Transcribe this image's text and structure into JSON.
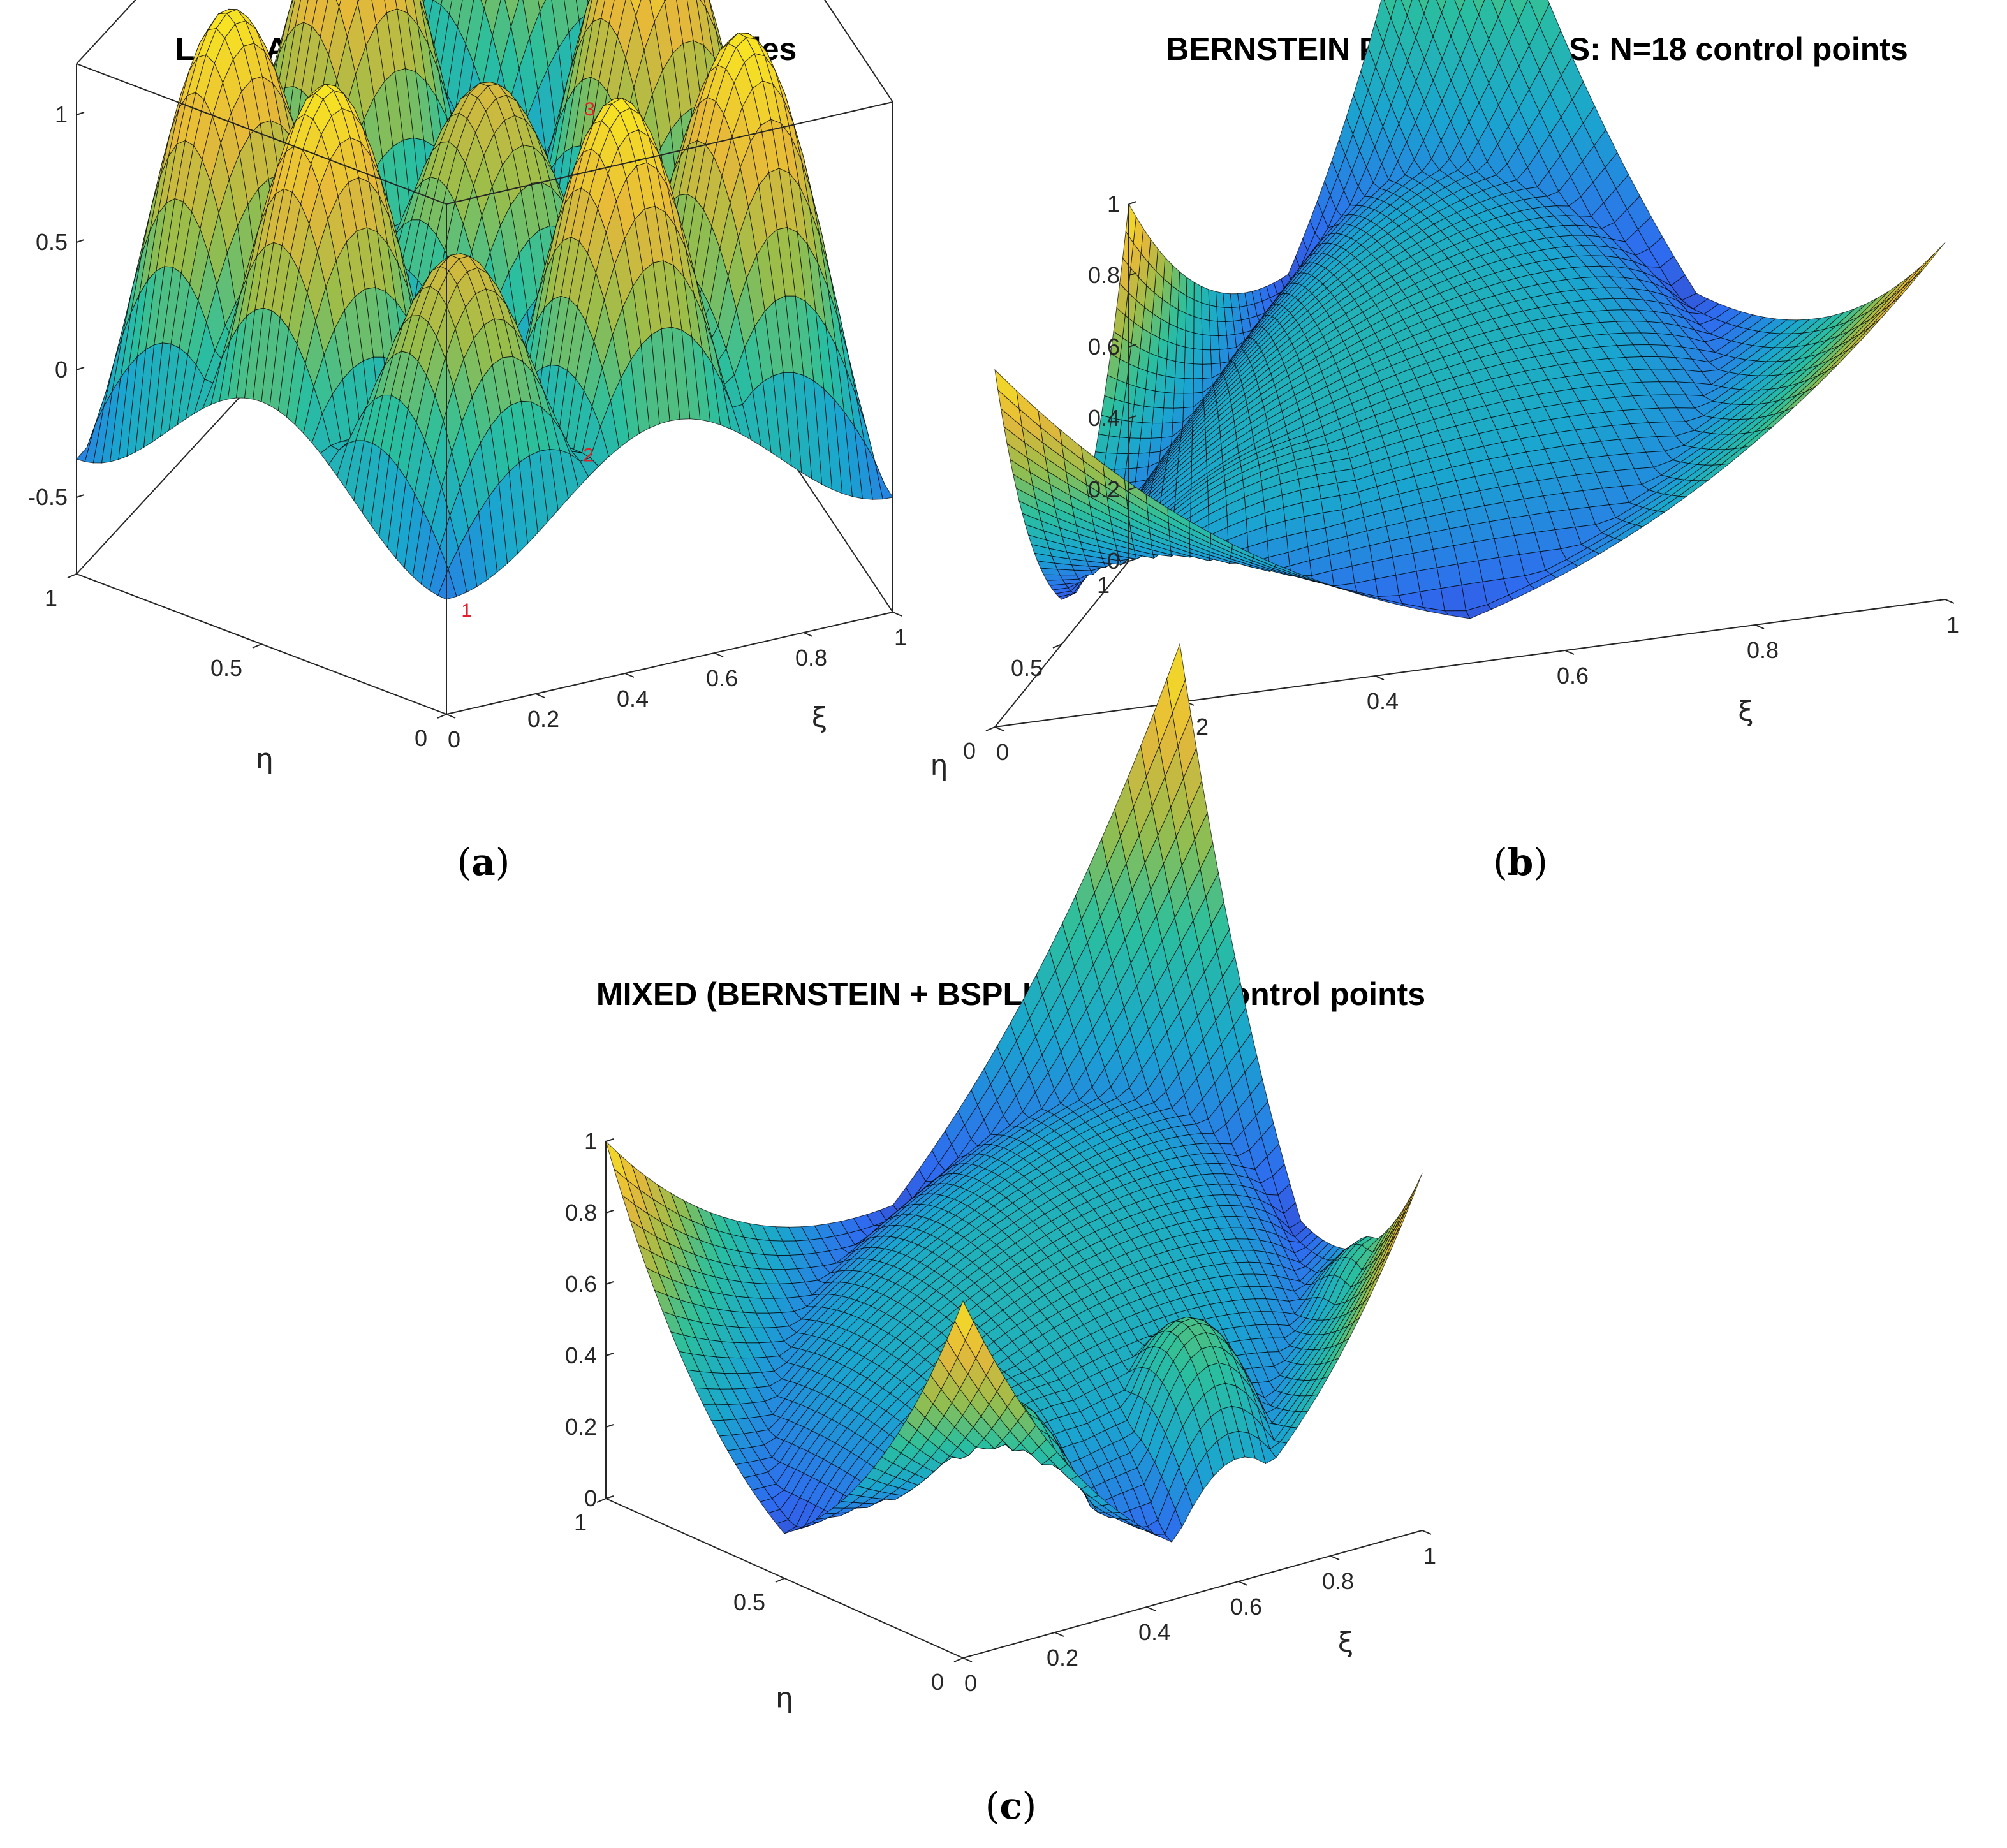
{
  "colors": {
    "colormap": [
      "#3e26a8",
      "#2f6bef",
      "#1aa6cf",
      "#2bbf9e",
      "#9bbd4a",
      "#e6b83a",
      "#f8e622"
    ],
    "edge": "#000000",
    "box": "#262626",
    "node_labels": "#e0202a"
  },
  "panels": [
    {
      "id": "a",
      "caption": "a",
      "chart_data": {
        "type": "surface",
        "title": "LAGRANGE POLYNOMIALS: N=18 nodes",
        "xlabel": "ξ",
        "ylabel": "η",
        "zlabel": "",
        "x_range": [
          0,
          1
        ],
        "y_range": [
          0,
          1
        ],
        "z_range": [
          -0.8,
          1.2
        ],
        "x_ticks": [
          "0",
          "0.2",
          "0.4",
          "0.6",
          "0.8",
          "1"
        ],
        "y_ticks": [
          "0",
          "0.5",
          "1"
        ],
        "z_ticks": [
          "-0.5",
          "0",
          "0.5",
          "1"
        ],
        "box": true,
        "node_labels": [
          "1",
          "2",
          "3"
        ]
      }
    },
    {
      "id": "b",
      "caption": "b",
      "chart_data": {
        "type": "surface",
        "title": "BERNSTEIN POLYNOMIALS: N=18 control points",
        "xlabel": "ξ",
        "ylabel": "η",
        "zlabel": "",
        "x_range": [
          0,
          1
        ],
        "y_range": [
          0,
          1
        ],
        "z_range": [
          0,
          1
        ],
        "x_ticks": [
          "0",
          "0.2",
          "0.4",
          "0.6",
          "0.8",
          "1"
        ],
        "y_ticks": [
          "0",
          "0.5",
          "1"
        ],
        "z_ticks": [
          "0",
          "0.2",
          "0.4",
          "0.6",
          "0.8",
          "1"
        ],
        "box": false
      }
    },
    {
      "id": "c",
      "caption": "c",
      "chart_data": {
        "type": "surface",
        "title": "MIXED (BERNSTEIN + BSPLINES): N=18 control points",
        "xlabel": "ξ",
        "ylabel": "η",
        "zlabel": "",
        "x_range": [
          0,
          1
        ],
        "y_range": [
          0,
          1
        ],
        "z_range": [
          0,
          1
        ],
        "x_ticks": [
          "0",
          "0.2",
          "0.4",
          "0.6",
          "0.8",
          "1"
        ],
        "y_ticks": [
          "0",
          "0.5",
          "1"
        ],
        "z_ticks": [
          "0",
          "0.2",
          "0.4",
          "0.6",
          "0.8",
          "1"
        ],
        "box": false
      }
    }
  ]
}
